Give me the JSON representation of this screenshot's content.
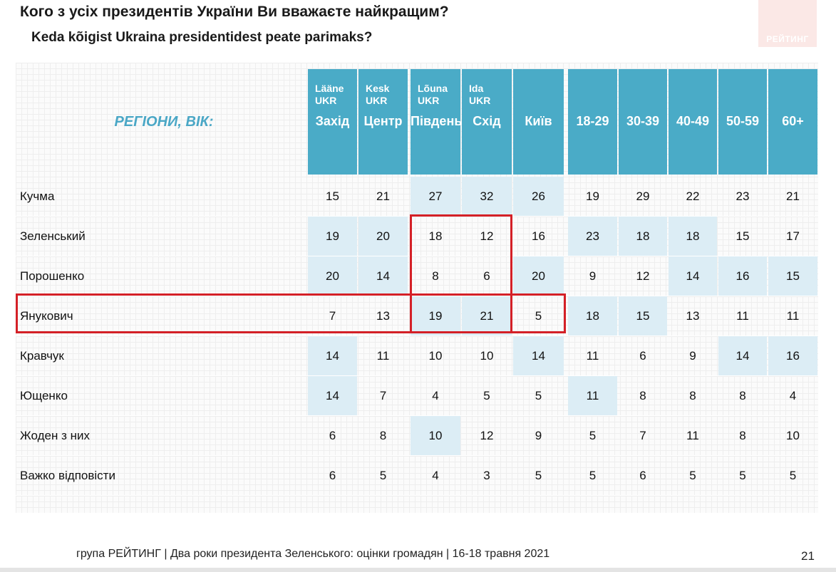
{
  "title": "Кого з усіх президентів України Ви вважаєте найкращим?",
  "subtitle": "Keda kõigist Ukraina presidentidest peate parimaks?",
  "logo": "РЕЙТИНГ",
  "table": {
    "corner_label": "РЕГІОНИ, ВІК:",
    "columns": [
      {
        "est": "Lääne\nUKR",
        "label": "Захід"
      },
      {
        "est": "Kesk\nUKR",
        "label": "Центр"
      },
      {
        "est": "Lõuna\nUKR",
        "label": "Південь"
      },
      {
        "est": "Ida\nUKR",
        "label": "Схід"
      },
      {
        "est": "",
        "label": "Київ"
      },
      {
        "est": "",
        "label": "18-29"
      },
      {
        "est": "",
        "label": "30-39"
      },
      {
        "est": "",
        "label": "40-49"
      },
      {
        "est": "",
        "label": "50-59"
      },
      {
        "est": "",
        "label": "60+"
      }
    ]
  },
  "chart_data": {
    "type": "table",
    "title": "Кого з усіх президентів України Ви вважаєте найкращим?",
    "columns": [
      "Захід",
      "Центр",
      "Південь",
      "Схід",
      "Київ",
      "18-29",
      "30-39",
      "40-49",
      "50-59",
      "60+"
    ],
    "rows": [
      {
        "label": "Кучма",
        "values": [
          15,
          21,
          27,
          32,
          26,
          19,
          29,
          22,
          23,
          21
        ],
        "highlight": [
          false,
          false,
          true,
          true,
          true,
          false,
          false,
          false,
          false,
          false
        ]
      },
      {
        "label": "Зеленський",
        "values": [
          19,
          20,
          18,
          12,
          16,
          23,
          18,
          18,
          15,
          17
        ],
        "highlight": [
          true,
          true,
          false,
          false,
          false,
          true,
          true,
          true,
          false,
          false
        ]
      },
      {
        "label": "Порошенко",
        "values": [
          20,
          14,
          8,
          6,
          20,
          9,
          12,
          14,
          16,
          15
        ],
        "highlight": [
          true,
          true,
          false,
          false,
          true,
          false,
          false,
          true,
          true,
          true
        ]
      },
      {
        "label": "Янукович",
        "values": [
          7,
          13,
          19,
          21,
          5,
          18,
          15,
          13,
          11,
          11
        ],
        "highlight": [
          false,
          false,
          true,
          true,
          false,
          true,
          true,
          false,
          false,
          false
        ]
      },
      {
        "label": "Кравчук",
        "values": [
          14,
          11,
          10,
          10,
          14,
          11,
          6,
          9,
          14,
          16
        ],
        "highlight": [
          true,
          false,
          false,
          false,
          true,
          false,
          false,
          false,
          true,
          true
        ]
      },
      {
        "label": "Ющенко",
        "values": [
          14,
          7,
          4,
          5,
          5,
          11,
          8,
          8,
          8,
          4
        ],
        "highlight": [
          true,
          false,
          false,
          false,
          false,
          true,
          false,
          false,
          false,
          false
        ]
      },
      {
        "label": "Жоден з них",
        "values": [
          6,
          8,
          10,
          12,
          9,
          5,
          7,
          11,
          8,
          10
        ],
        "highlight": [
          false,
          false,
          true,
          false,
          false,
          false,
          false,
          false,
          false,
          false
        ]
      },
      {
        "label": "Важко відповісти",
        "values": [
          6,
          5,
          4,
          3,
          5,
          5,
          6,
          5,
          5,
          5
        ],
        "highlight": [
          false,
          false,
          false,
          false,
          false,
          false,
          false,
          false,
          false,
          false
        ]
      }
    ]
  },
  "colors": {
    "header": "#4aabc7",
    "highlight": "#dcedf5",
    "accent_red": "#d42027",
    "region_label": "#4aa7c6"
  },
  "footer": "група РЕЙТИНГ | Два роки президента Зеленського: оцінки громадян  | 16-18 травня 2021",
  "page_number": "21"
}
